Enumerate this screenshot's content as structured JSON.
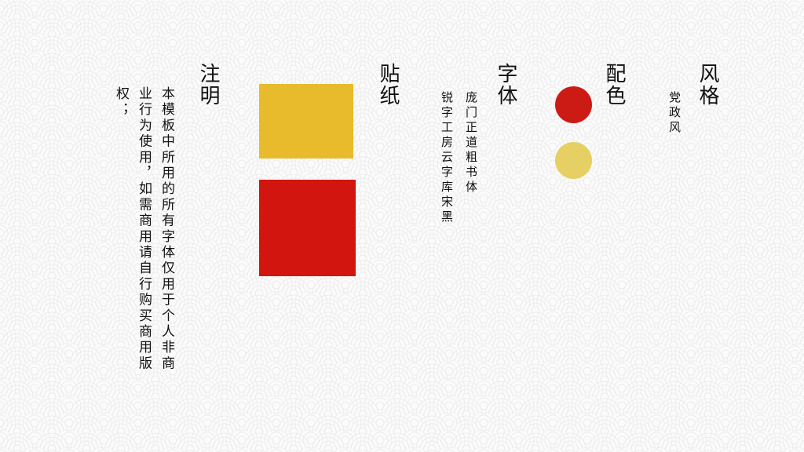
{
  "style": {
    "heading": "风格",
    "value": "党政风"
  },
  "colors": {
    "heading": "配色",
    "primary": "#cc1b14",
    "secondary": "#e6cf63"
  },
  "fonts": {
    "heading": "字体",
    "font1": "庞门正道粗书体",
    "font2": "锐字工房云字库宋黑"
  },
  "stickers": {
    "heading": "贴纸",
    "gold": "#e8bb2c",
    "red": "#d2150f"
  },
  "notice": {
    "heading": "注明",
    "text": "本模板中所用的所有字体仅用于个人非商业行为使用，如需商用请自行购买商用版权；"
  }
}
